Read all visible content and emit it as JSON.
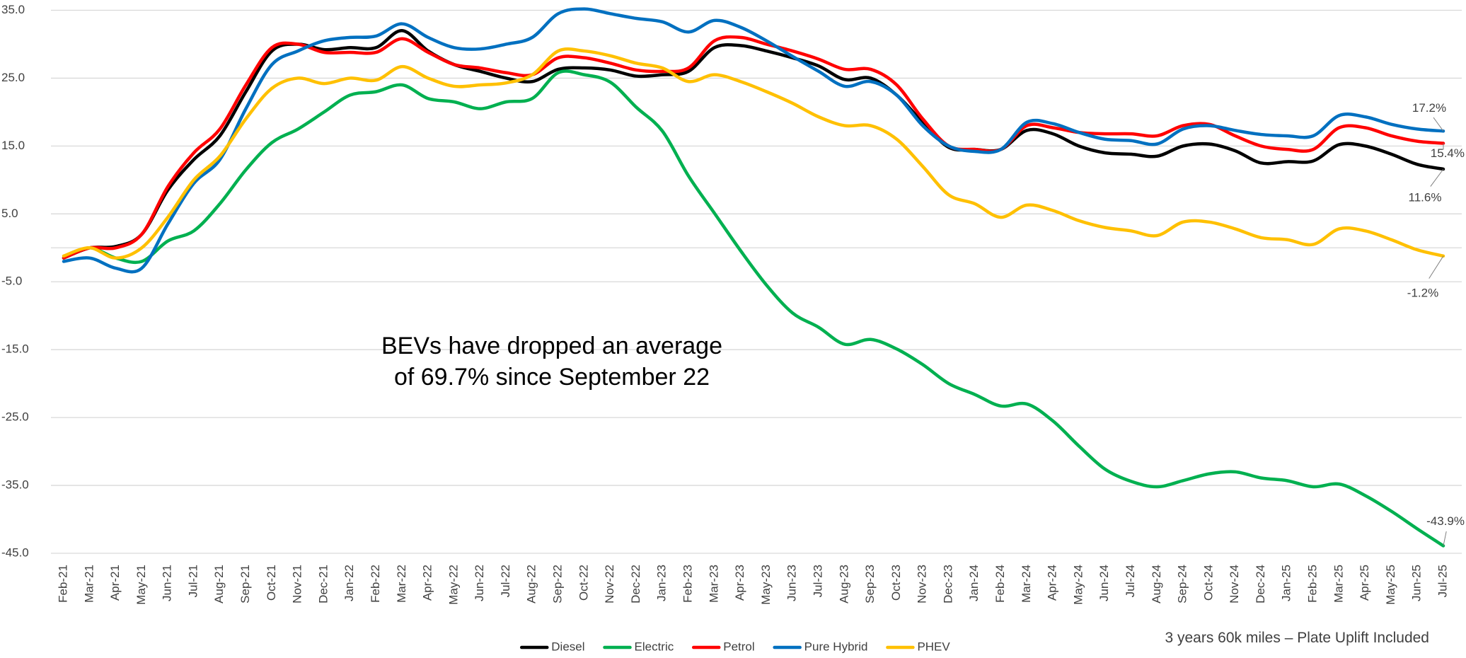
{
  "chart_data": {
    "type": "line",
    "annotation": [
      "BEVs have dropped an average",
      "of 69.7% since September 22"
    ],
    "footnote": "3 years 60k miles – Plate Uplift Included",
    "categories": [
      "Feb-21",
      "Mar-21",
      "Apr-21",
      "May-21",
      "Jun-21",
      "Jul-21",
      "Aug-21",
      "Sep-21",
      "Oct-21",
      "Nov-21",
      "Dec-21",
      "Jan-22",
      "Feb-22",
      "Mar-22",
      "Apr-22",
      "May-22",
      "Jun-22",
      "Jul-22",
      "Aug-22",
      "Sep-22",
      "Oct-22",
      "Nov-22",
      "Dec-22",
      "Jan-23",
      "Feb-23",
      "Mar-23",
      "Apr-23",
      "May-23",
      "Jun-23",
      "Jul-23",
      "Aug-23",
      "Sep-23",
      "Oct-23",
      "Nov-23",
      "Dec-23",
      "Jan-24",
      "Feb-24",
      "Mar-24",
      "Apr-24",
      "May-24",
      "Jun-24",
      "Jul-24",
      "Aug-24",
      "Sep-24",
      "Oct-24",
      "Nov-24",
      "Dec-24",
      "Jan-25",
      "Feb-25",
      "Mar-25",
      "Apr-25",
      "May-25",
      "Jun-25",
      "Jul-25"
    ],
    "series": [
      {
        "name": "Diesel",
        "color": "#000000",
        "end_label": "11.6%",
        "values": [
          -1.5,
          0,
          0.2,
          2,
          8.5,
          13,
          16.5,
          23,
          29,
          30,
          29.2,
          29.5,
          29.5,
          32,
          29,
          27,
          26,
          25,
          24.5,
          26.3,
          26.5,
          26.2,
          25.3,
          25.5,
          26,
          29.5,
          29.8,
          29,
          28,
          26.8,
          24.8,
          25,
          22.5,
          18.5,
          14.8,
          14.5,
          14.5,
          17.3,
          16.8,
          15,
          14,
          13.8,
          13.5,
          15,
          15.3,
          14.3,
          12.5,
          12.7,
          12.8,
          15.2,
          15,
          13.8,
          12.3,
          11.6
        ]
      },
      {
        "name": "Electric",
        "color": "#00b050",
        "end_label": "-43.9%",
        "values": [
          -1.5,
          0,
          -1.5,
          -2,
          1,
          2.5,
          6.5,
          11.5,
          15.5,
          17.5,
          20,
          22.5,
          23,
          24,
          22,
          21.5,
          20.5,
          21.5,
          22,
          25.8,
          25.5,
          24.4,
          20.7,
          17.2,
          10.6,
          5.1,
          -0.4,
          -5.5,
          -9.6,
          -11.7,
          -14.2,
          -13.5,
          -14.9,
          -17.2,
          -20,
          -21.6,
          -23.3,
          -23,
          -25.5,
          -29.2,
          -32.6,
          -34.4,
          -35.2,
          -34.3,
          -33.3,
          -33,
          -33.9,
          -34.3,
          -35.2,
          -34.8,
          -36.5,
          -38.8,
          -41.4,
          -43.9
        ]
      },
      {
        "name": "Petrol",
        "color": "#ff0000",
        "end_label": "15.4%",
        "values": [
          -1.5,
          0,
          0,
          2,
          9,
          14,
          17.5,
          24,
          29.5,
          30,
          28.8,
          28.8,
          28.8,
          30.8,
          28.8,
          27,
          26.5,
          25.8,
          25.5,
          28,
          28,
          27.2,
          26.2,
          26,
          26.5,
          30.5,
          31,
          30,
          29,
          27.8,
          26.3,
          26.3,
          24,
          19,
          15,
          14.5,
          14.5,
          18,
          17.7,
          17,
          16.8,
          16.8,
          16.5,
          18,
          18.2,
          16.5,
          15,
          14.5,
          14.5,
          17.7,
          17.7,
          16.5,
          15.7,
          15.4
        ]
      },
      {
        "name": "Pure Hybrid",
        "color": "#0070c0",
        "end_label": "17.2%",
        "values": [
          -2,
          -1.5,
          -3,
          -3,
          3.5,
          9.5,
          13,
          20.5,
          27,
          29,
          30.5,
          31,
          31.2,
          33,
          31,
          29.5,
          29.3,
          30,
          31,
          34.5,
          35.2,
          34.5,
          33.8,
          33.3,
          31.8,
          33.5,
          32.5,
          30.5,
          28.2,
          26,
          23.8,
          24.5,
          22.5,
          18,
          15,
          14.2,
          14.5,
          18.5,
          18.3,
          17,
          16,
          15.8,
          15.3,
          17.5,
          18,
          17.3,
          16.7,
          16.5,
          16.5,
          19.5,
          19.3,
          18.2,
          17.5,
          17.2
        ]
      },
      {
        "name": "PHEV",
        "color": "#ffc000",
        "end_label": "-1.2%",
        "values": [
          -1.2,
          0,
          -1.5,
          0,
          4.5,
          10,
          13.5,
          19,
          23.5,
          25,
          24.2,
          25,
          24.7,
          26.7,
          25,
          23.8,
          24,
          24.3,
          25.5,
          29,
          29,
          28.3,
          27.2,
          26.5,
          24.5,
          25.5,
          24.5,
          23,
          21.3,
          19.3,
          18,
          18,
          16,
          12,
          7.8,
          6.5,
          4.5,
          6.3,
          5.5,
          4,
          3,
          2.5,
          1.8,
          3.8,
          3.8,
          2.8,
          1.5,
          1.2,
          0.5,
          2.8,
          2.5,
          1.2,
          -0.3,
          -1.2
        ]
      }
    ],
    "ylim": [
      -45,
      35
    ],
    "yticks": [
      {
        "value": -45,
        "label": "-45.0"
      },
      {
        "value": -35,
        "label": "-35.0"
      },
      {
        "value": -25,
        "label": "-25.0"
      },
      {
        "value": -15,
        "label": "-15.0"
      },
      {
        "value": -5,
        "label": "-5.0"
      },
      {
        "value": 5,
        "label": "5.0"
      },
      {
        "value": 15,
        "label": "15.0"
      },
      {
        "value": 25,
        "label": "25.0"
      },
      {
        "value": 35,
        "label": "35.0"
      }
    ],
    "grid": true,
    "legend": "bottom"
  }
}
